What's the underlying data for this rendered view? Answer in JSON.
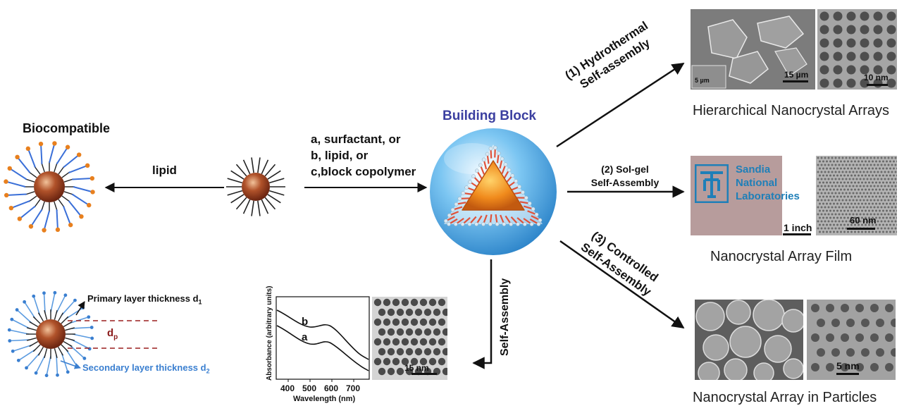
{
  "diagram": {
    "center_title": "Building Block",
    "left_title": "Biocompatible",
    "lipid_label": "lipid",
    "reagent_lines": [
      "a, surfactant, or",
      "b, lipid, or",
      "c,block copolymer"
    ],
    "route1_lines": [
      "(1) Hydrothermal",
      "Self-assembly"
    ],
    "route2_lines": [
      "(2) Sol-gel",
      "Self-Assembly"
    ],
    "route3_lines": [
      "(3) Controlled",
      "Self-Assembly"
    ],
    "down_label": "Self-Assembly",
    "primary_layer": "Primary layer thickness d",
    "primary_sub": "1",
    "secondary_layer": "Secondary layer thickness d",
    "secondary_sub": "2",
    "dp_label": "d",
    "dp_sub": "p"
  },
  "results": {
    "hierarchical": {
      "caption": "Hierarchical Nanocrystal Arrays",
      "scale_left": "15 µm",
      "scale_inset": "5 µm",
      "scale_right": "10 nm"
    },
    "film": {
      "caption": "Nanocrystal Array Film",
      "sandia_lines": [
        "Sandia",
        "National",
        "Laboratories"
      ],
      "scale_left": "1 inch",
      "scale_right": "60 nm"
    },
    "particles": {
      "caption": "Nanocrystal Array in Particles",
      "scale_right": "5 nm"
    }
  },
  "spectrum": {
    "ylabel": "Absorbance (arbitrary units)",
    "xlabel": "Wavelength (nm)",
    "xticks": [
      "400",
      "500",
      "600",
      "700"
    ],
    "curve_labels": [
      "b",
      "a"
    ],
    "tem_scale": "15 nm"
  },
  "colors": {
    "title_blue": "#3b3fa0",
    "sphere_blue": "#4aa8e0",
    "core_orange": "#e8801e",
    "lipid_blue": "#3a6fd8",
    "dp_red": "#8b1a1a"
  }
}
